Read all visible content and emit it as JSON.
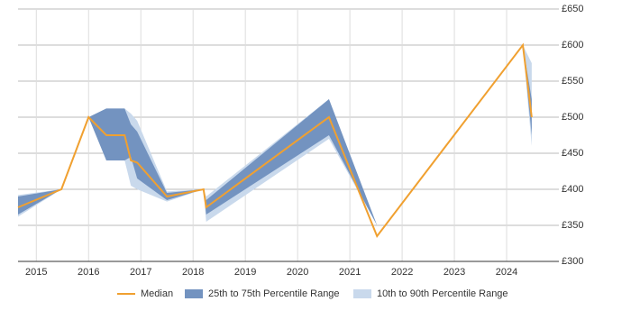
{
  "chart_data": {
    "type": "line",
    "x": [
      2014.65,
      2015.48,
      2016.0,
      2016.34,
      2016.69,
      2016.81,
      2016.93,
      2017.5,
      2018.2,
      2018.25,
      2020.6,
      2021.52,
      2024.31,
      2024.48
    ],
    "series": [
      {
        "name": "Median",
        "color": "#f0a030",
        "values": [
          375,
          400,
          500,
          475,
          475,
          440,
          437,
          390,
          400,
          375,
          500,
          335,
          600,
          500
        ]
      },
      {
        "name": "25th to 75th Percentile Range",
        "color": "#7393c0",
        "low": [
          365,
          400,
          500,
          440,
          440,
          445,
          415,
          385,
          400,
          365,
          475,
          350,
          600,
          475
        ],
        "high": [
          390,
          400,
          500,
          512,
          512,
          490,
          480,
          395,
          400,
          385,
          525,
          350,
          600,
          525
        ]
      },
      {
        "name": "10th to 90th Percentile Range",
        "color": "#c9d9ec",
        "low": [
          362,
          400,
          500,
          440,
          440,
          405,
          400,
          383,
          400,
          355,
          470,
          350,
          600,
          460
        ],
        "high": [
          392,
          400,
          500,
          512,
          512,
          505,
          495,
          397,
          400,
          390,
          525,
          350,
          600,
          575
        ]
      }
    ],
    "xlim": [
      2014.65,
      2025.0
    ],
    "xticks": [
      2015,
      2016,
      2017,
      2018,
      2019,
      2020,
      2021,
      2022,
      2023,
      2024
    ],
    "ylim": [
      300,
      650
    ],
    "yticks": [
      {
        "value": 300,
        "label": "£300"
      },
      {
        "value": 350,
        "label": "£350"
      },
      {
        "value": 400,
        "label": "£400"
      },
      {
        "value": 450,
        "label": "£450"
      },
      {
        "value": 500,
        "label": "£500"
      },
      {
        "value": 550,
        "label": "£550"
      },
      {
        "value": 600,
        "label": "£600"
      },
      {
        "value": 650,
        "label": "£650"
      }
    ],
    "grid": true,
    "legend": "bottom"
  }
}
